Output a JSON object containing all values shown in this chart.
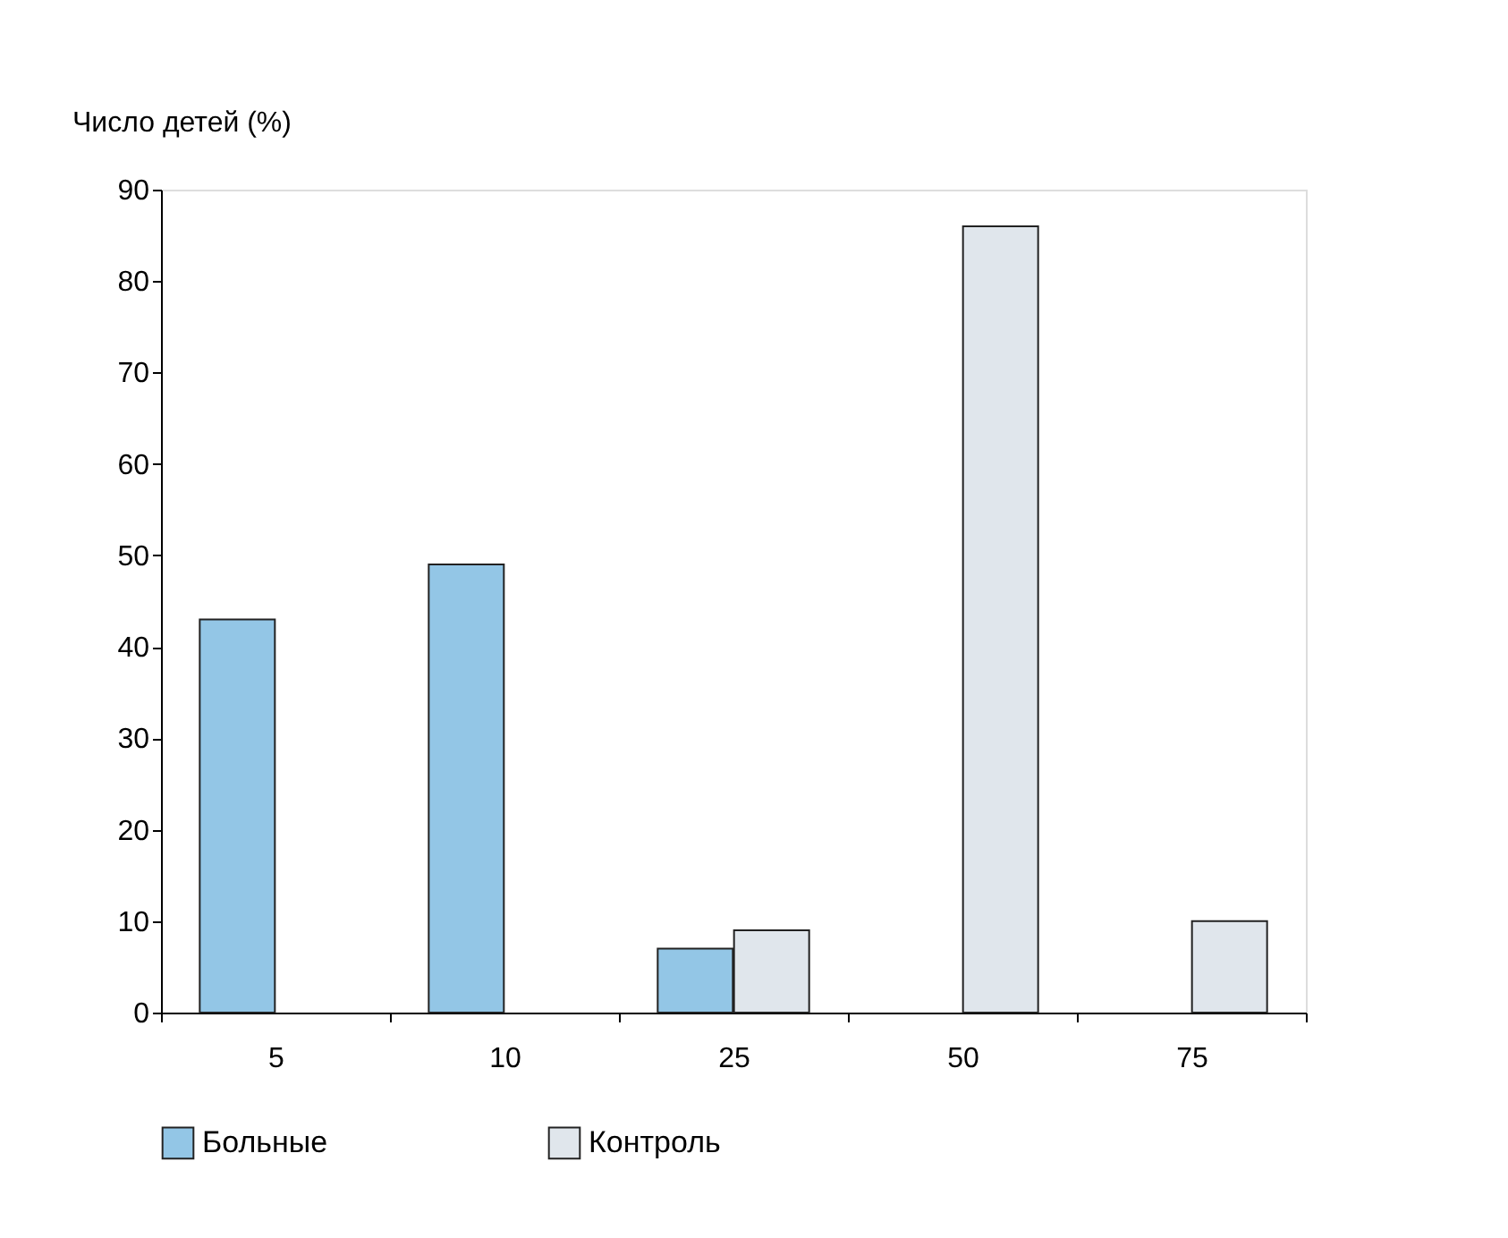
{
  "chart_data": {
    "type": "bar",
    "ylabel": "Число детей (%)",
    "categories": [
      "5",
      "10",
      "25",
      "50",
      "75"
    ],
    "series": [
      {
        "name": "Больные",
        "color": "#93c6e6",
        "values": [
          43,
          49,
          7,
          null,
          null
        ]
      },
      {
        "name": "Контроль",
        "color": "#e0e6ec",
        "values": [
          null,
          null,
          9,
          86,
          10
        ]
      }
    ],
    "ylim": [
      0,
      90
    ],
    "yticks": [
      0,
      10,
      20,
      30,
      40,
      50,
      60,
      70,
      80,
      90
    ],
    "grid": false,
    "legend": "bottom"
  }
}
